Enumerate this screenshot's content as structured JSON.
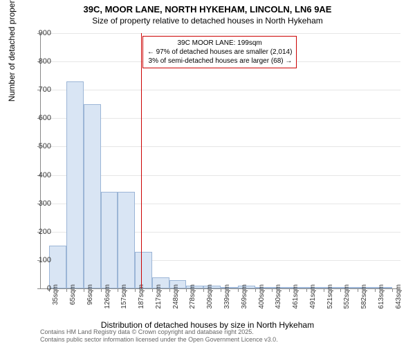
{
  "chart": {
    "type": "histogram",
    "title_line1": "39C, MOOR LANE, NORTH HYKEHAM, LINCOLN, LN6 9AE",
    "title_line2": "Size of property relative to detached houses in North Hykeham",
    "y_axis_label": "Number of detached properties",
    "x_axis_label": "Distribution of detached houses by size in North Hykeham",
    "ylim": [
      0,
      900
    ],
    "ytick_step": 100,
    "y_ticks": [
      0,
      100,
      200,
      300,
      400,
      500,
      600,
      700,
      800,
      900
    ],
    "x_categories": [
      "35sqm",
      "65sqm",
      "96sqm",
      "126sqm",
      "157sqm",
      "187sqm",
      "217sqm",
      "248sqm",
      "278sqm",
      "309sqm",
      "339sqm",
      "369sqm",
      "400sqm",
      "430sqm",
      "461sqm",
      "491sqm",
      "521sqm",
      "552sqm",
      "582sqm",
      "613sqm",
      "643sqm"
    ],
    "values": [
      150,
      730,
      650,
      340,
      340,
      130,
      40,
      30,
      10,
      10,
      5,
      10,
      0,
      5,
      0,
      0,
      0,
      0,
      0,
      0
    ],
    "bar_fill_color": "#d9e5f4",
    "bar_border_color": "#9bb5d6",
    "background_color": "#ffffff",
    "grid_color": "#e6e6e6",
    "axis_color": "#888888",
    "marker": {
      "position_index": 5.35,
      "color": "#cc0000",
      "annotation_title": "39C MOOR LANE: 199sqm",
      "annotation_line1": "← 97% of detached houses are smaller (2,014)",
      "annotation_line2": "3% of semi-detached houses are larger (68) →"
    },
    "attribution_line1": "Contains HM Land Registry data © Crown copyright and database right 2025.",
    "attribution_line2": "Contains public sector information licensed under the Open Government Licence v3.0."
  }
}
